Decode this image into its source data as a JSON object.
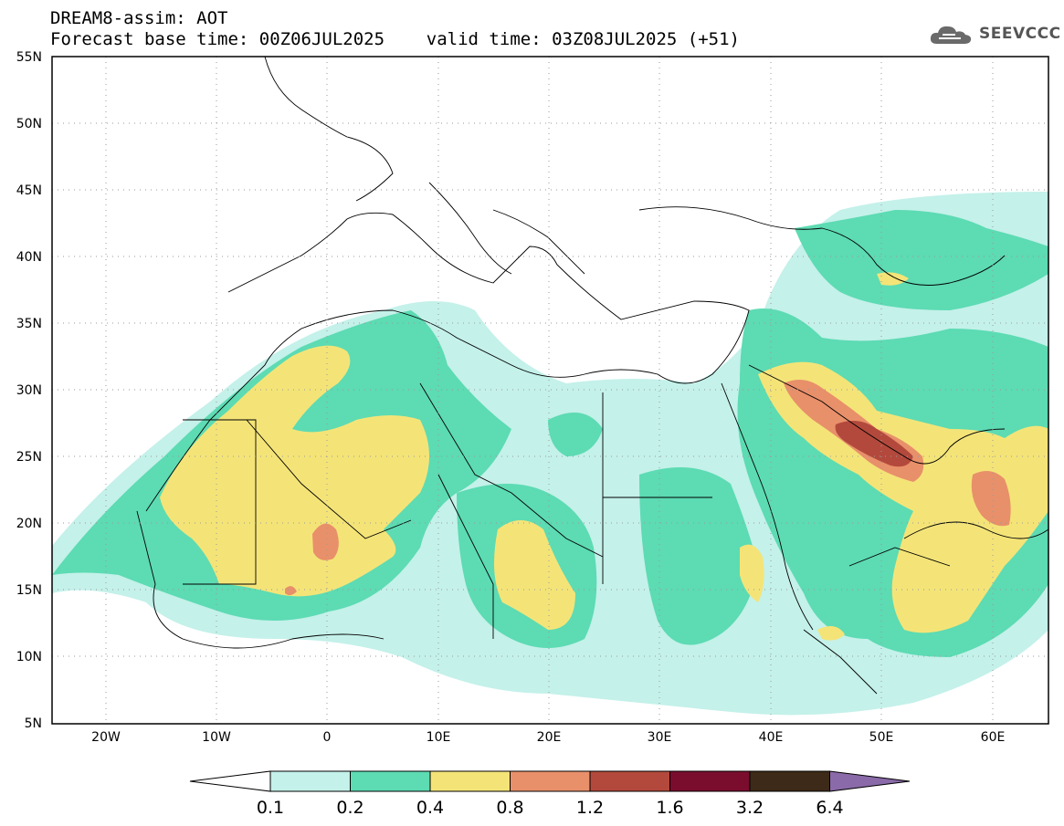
{
  "header": {
    "title_line1": "DREAM8-assim: AOT",
    "title_line2": "Forecast base time: 00Z06JUL2025    valid time: 03Z08JUL2025 (+51)"
  },
  "logo": {
    "text": "SEEVCCC",
    "icon": "cloud-icon"
  },
  "map": {
    "lat_labels": [
      "55N",
      "50N",
      "45N",
      "40N",
      "35N",
      "30N",
      "25N",
      "20N",
      "15N",
      "10N",
      "5N"
    ],
    "lon_labels": [
      "20W",
      "10W",
      "0",
      "10E",
      "20E",
      "30E",
      "40E",
      "50E",
      "60E"
    ],
    "grid": true
  },
  "colorbar": {
    "labels": [
      "0.1",
      "0.2",
      "0.4",
      "0.8",
      "1.2",
      "1.6",
      "3.2",
      "6.4"
    ],
    "colors": [
      "#ffffff",
      "#c4f1ea",
      "#5ddbb3",
      "#f4e478",
      "#e8906a",
      "#b3493c",
      "#7a0d2e",
      "#3d2a18",
      "#8a6aa8"
    ]
  },
  "colors": {
    "aot_0_1": "#c4f1ea",
    "aot_0_2": "#5ddbb3",
    "aot_0_4": "#f4e478",
    "aot_0_8": "#e8906a",
    "aot_1_2": "#b3493c"
  }
}
